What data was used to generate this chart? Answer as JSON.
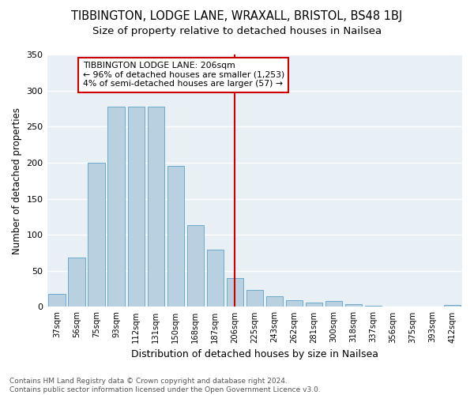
{
  "title": "TIBBINGTON, LODGE LANE, WRAXALL, BRISTOL, BS48 1BJ",
  "subtitle": "Size of property relative to detached houses in Nailsea",
  "xlabel": "Distribution of detached houses by size in Nailsea",
  "ylabel": "Number of detached properties",
  "footer_line1": "Contains HM Land Registry data © Crown copyright and database right 2024.",
  "footer_line2": "Contains public sector information licensed under the Open Government Licence v3.0.",
  "categories": [
    "37sqm",
    "56sqm",
    "75sqm",
    "93sqm",
    "112sqm",
    "131sqm",
    "150sqm",
    "168sqm",
    "187sqm",
    "206sqm",
    "225sqm",
    "243sqm",
    "262sqm",
    "281sqm",
    "300sqm",
    "318sqm",
    "337sqm",
    "356sqm",
    "375sqm",
    "393sqm",
    "412sqm"
  ],
  "values": [
    18,
    68,
    200,
    278,
    278,
    278,
    195,
    113,
    79,
    40,
    24,
    15,
    9,
    6,
    8,
    4,
    2,
    1,
    1,
    0,
    3
  ],
  "bar_color": "#b8d0e0",
  "bar_edge_color": "#6aaacf",
  "vline_x_index": 9,
  "vline_color": "#cc0000",
  "annotation_title": "TIBBINGTON LODGE LANE: 206sqm",
  "annotation_line1": "← 96% of detached houses are smaller (1,253)",
  "annotation_line2": "4% of semi-detached houses are larger (57) →",
  "annotation_box_color": "#ffffff",
  "annotation_border_color": "#cc0000",
  "ylim": [
    0,
    350
  ],
  "yticks": [
    0,
    50,
    100,
    150,
    200,
    250,
    300,
    350
  ],
  "fig_bg_color": "#ffffff",
  "plot_bg_color": "#e8f0f6",
  "grid_color": "#ffffff",
  "title_fontsize": 10.5,
  "subtitle_fontsize": 9.5,
  "footer_fontsize": 6.5
}
